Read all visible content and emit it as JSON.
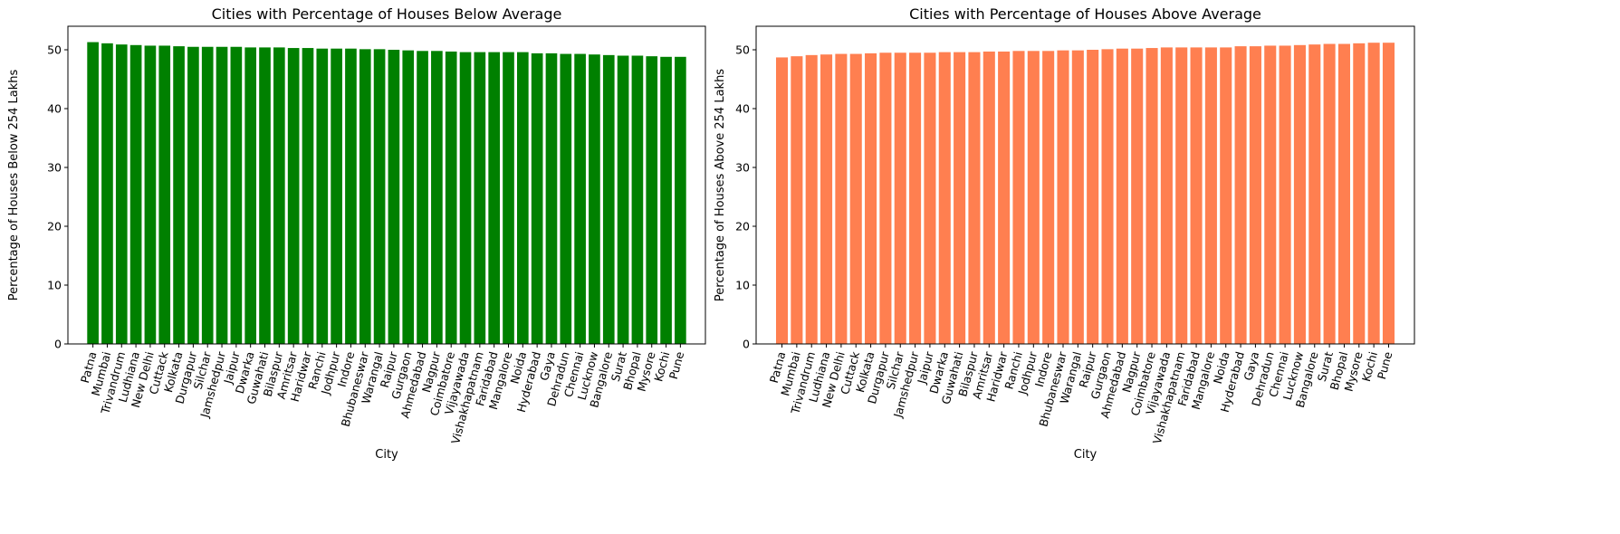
{
  "chart_data": [
    {
      "type": "bar",
      "title": "Cities with Percentage of Houses Below Average",
      "xlabel": "City",
      "ylabel": "Percentage of Houses Below 254 Lakhs",
      "ylim": [
        0,
        54
      ],
      "yticks": [
        0,
        10,
        20,
        30,
        40,
        50
      ],
      "grid": false,
      "color": "#008000",
      "categories": [
        "Patna",
        "Mumbai",
        "Trivandrum",
        "Ludhiana",
        "New Delhi",
        "Cuttack",
        "Kolkata",
        "Durgapur",
        "Silchar",
        "Jamshedpur",
        "Jaipur",
        "Dwarka",
        "Guwahati",
        "Bilaspur",
        "Amritsar",
        "Haridwar",
        "Ranchi",
        "Jodhpur",
        "Indore",
        "Bhubaneswar",
        "Warangal",
        "Raipur",
        "Gurgaon",
        "Ahmedabad",
        "Nagpur",
        "Coimbatore",
        "Vijayawada",
        "Vishakhapatnam",
        "Faridabad",
        "Mangalore",
        "Noida",
        "Hyderabad",
        "Gaya",
        "Dehradun",
        "Chennai",
        "Lucknow",
        "Bangalore",
        "Surat",
        "Bhopal",
        "Mysore",
        "Kochi",
        "Pune"
      ],
      "values": [
        51.3,
        51.1,
        50.9,
        50.8,
        50.7,
        50.7,
        50.6,
        50.5,
        50.5,
        50.5,
        50.5,
        50.4,
        50.4,
        50.4,
        50.3,
        50.3,
        50.2,
        50.2,
        50.2,
        50.1,
        50.1,
        50.0,
        49.9,
        49.8,
        49.8,
        49.7,
        49.6,
        49.6,
        49.6,
        49.6,
        49.6,
        49.4,
        49.4,
        49.3,
        49.3,
        49.2,
        49.1,
        49.0,
        49.0,
        48.9,
        48.8,
        48.8
      ]
    },
    {
      "type": "bar",
      "title": "Cities with Percentage of Houses Above Average",
      "xlabel": "City",
      "ylabel": "Percentage of Houses Above 254 Lakhs",
      "ylim": [
        0,
        54
      ],
      "yticks": [
        0,
        10,
        20,
        30,
        40,
        50
      ],
      "grid": false,
      "color": "#ff7f50",
      "categories": [
        "Patna",
        "Mumbai",
        "Trivandrum",
        "Ludhiana",
        "New Delhi",
        "Cuttack",
        "Kolkata",
        "Durgapur",
        "Silchar",
        "Jamshedpur",
        "Jaipur",
        "Dwarka",
        "Guwahati",
        "Bilaspur",
        "Amritsar",
        "Haridwar",
        "Ranchi",
        "Jodhpur",
        "Indore",
        "Bhubaneswar",
        "Warangal",
        "Raipur",
        "Gurgaon",
        "Ahmedabad",
        "Nagpur",
        "Coimbatore",
        "Vijayawada",
        "Vishakhapatnam",
        "Faridabad",
        "Mangalore",
        "Noida",
        "Hyderabad",
        "Gaya",
        "Dehradun",
        "Chennai",
        "Lucknow",
        "Bangalore",
        "Surat",
        "Bhopal",
        "Mysore",
        "Kochi",
        "Pune"
      ],
      "values": [
        48.7,
        48.9,
        49.1,
        49.2,
        49.3,
        49.3,
        49.4,
        49.5,
        49.5,
        49.5,
        49.5,
        49.6,
        49.6,
        49.6,
        49.7,
        49.7,
        49.8,
        49.8,
        49.8,
        49.9,
        49.9,
        50.0,
        50.1,
        50.2,
        50.2,
        50.3,
        50.4,
        50.4,
        50.4,
        50.4,
        50.4,
        50.6,
        50.6,
        50.7,
        50.7,
        50.8,
        50.9,
        51.0,
        51.0,
        51.1,
        51.2,
        51.2
      ]
    }
  ]
}
